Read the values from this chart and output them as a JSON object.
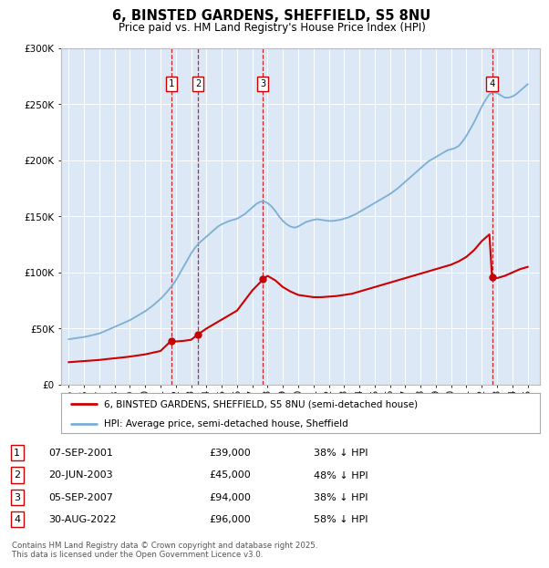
{
  "title": "6, BINSTED GARDENS, SHEFFIELD, S5 8NU",
  "subtitle": "Price paid vs. HM Land Registry's House Price Index (HPI)",
  "footer": "Contains HM Land Registry data © Crown copyright and database right 2025.\nThis data is licensed under the Open Government Licence v3.0.",
  "legend_line1": "6, BINSTED GARDENS, SHEFFIELD, S5 8NU (semi-detached house)",
  "legend_line2": "HPI: Average price, semi-detached house, Sheffield",
  "transactions": [
    {
      "num": 1,
      "date": "07-SEP-2001",
      "price": 39000,
      "pct": "38% ↓ HPI",
      "year": 2001.69
    },
    {
      "num": 2,
      "date": "20-JUN-2003",
      "price": 45000,
      "pct": "48% ↓ HPI",
      "year": 2003.47
    },
    {
      "num": 3,
      "date": "05-SEP-2007",
      "price": 94000,
      "pct": "38% ↓ HPI",
      "year": 2007.69
    },
    {
      "num": 4,
      "date": "30-AUG-2022",
      "price": 96000,
      "pct": "58% ↓ HPI",
      "year": 2022.67
    }
  ],
  "hpi_color": "#7bafd4",
  "price_color": "#cc0000",
  "vline_color": "#cc0000",
  "plot_bg": "#dce8f5",
  "ylim": [
    0,
    300000
  ],
  "yticks": [
    0,
    50000,
    100000,
    150000,
    200000,
    250000,
    300000
  ],
  "xlim_start": 1994.5,
  "xlim_end": 2025.8,
  "hpi_data": [
    [
      1995.0,
      40500
    ],
    [
      1995.25,
      41000
    ],
    [
      1995.5,
      41500
    ],
    [
      1995.75,
      42000
    ],
    [
      1996.0,
      42500
    ],
    [
      1996.25,
      43200
    ],
    [
      1996.5,
      44000
    ],
    [
      1996.75,
      44800
    ],
    [
      1997.0,
      45700
    ],
    [
      1997.25,
      47000
    ],
    [
      1997.5,
      48500
    ],
    [
      1997.75,
      50000
    ],
    [
      1998.0,
      51500
    ],
    [
      1998.25,
      53000
    ],
    [
      1998.5,
      54500
    ],
    [
      1998.75,
      56000
    ],
    [
      1999.0,
      57500
    ],
    [
      1999.25,
      59500
    ],
    [
      1999.5,
      61500
    ],
    [
      1999.75,
      63500
    ],
    [
      2000.0,
      65500
    ],
    [
      2000.25,
      68000
    ],
    [
      2000.5,
      70500
    ],
    [
      2000.75,
      73500
    ],
    [
      2001.0,
      76500
    ],
    [
      2001.25,
      80000
    ],
    [
      2001.5,
      84000
    ],
    [
      2001.75,
      88000
    ],
    [
      2002.0,
      93000
    ],
    [
      2002.25,
      99000
    ],
    [
      2002.5,
      105000
    ],
    [
      2002.75,
      111000
    ],
    [
      2003.0,
      117000
    ],
    [
      2003.25,
      122000
    ],
    [
      2003.5,
      126000
    ],
    [
      2003.75,
      129000
    ],
    [
      2004.0,
      132000
    ],
    [
      2004.25,
      135000
    ],
    [
      2004.5,
      138000
    ],
    [
      2004.75,
      141000
    ],
    [
      2005.0,
      143000
    ],
    [
      2005.25,
      144500
    ],
    [
      2005.5,
      146000
    ],
    [
      2005.75,
      147000
    ],
    [
      2006.0,
      148000
    ],
    [
      2006.25,
      150000
    ],
    [
      2006.5,
      152000
    ],
    [
      2006.75,
      155000
    ],
    [
      2007.0,
      158000
    ],
    [
      2007.25,
      161000
    ],
    [
      2007.5,
      163000
    ],
    [
      2007.75,
      163500
    ],
    [
      2008.0,
      162000
    ],
    [
      2008.25,
      159000
    ],
    [
      2008.5,
      155000
    ],
    [
      2008.75,
      150000
    ],
    [
      2009.0,
      146000
    ],
    [
      2009.25,
      143000
    ],
    [
      2009.5,
      141000
    ],
    [
      2009.75,
      140000
    ],
    [
      2010.0,
      141000
    ],
    [
      2010.25,
      143000
    ],
    [
      2010.5,
      145000
    ],
    [
      2010.75,
      146000
    ],
    [
      2011.0,
      147000
    ],
    [
      2011.25,
      147500
    ],
    [
      2011.5,
      147000
    ],
    [
      2011.75,
      146500
    ],
    [
      2012.0,
      146000
    ],
    [
      2012.25,
      146000
    ],
    [
      2012.5,
      146500
    ],
    [
      2012.75,
      147000
    ],
    [
      2013.0,
      148000
    ],
    [
      2013.25,
      149000
    ],
    [
      2013.5,
      150500
    ],
    [
      2013.75,
      152000
    ],
    [
      2014.0,
      154000
    ],
    [
      2014.25,
      156000
    ],
    [
      2014.5,
      158000
    ],
    [
      2014.75,
      160000
    ],
    [
      2015.0,
      162000
    ],
    [
      2015.25,
      164000
    ],
    [
      2015.5,
      166000
    ],
    [
      2015.75,
      168000
    ],
    [
      2016.0,
      170000
    ],
    [
      2016.25,
      172500
    ],
    [
      2016.5,
      175000
    ],
    [
      2016.75,
      178000
    ],
    [
      2017.0,
      181000
    ],
    [
      2017.25,
      184000
    ],
    [
      2017.5,
      187000
    ],
    [
      2017.75,
      190000
    ],
    [
      2018.0,
      193000
    ],
    [
      2018.25,
      196000
    ],
    [
      2018.5,
      199000
    ],
    [
      2018.75,
      201000
    ],
    [
      2019.0,
      203000
    ],
    [
      2019.25,
      205000
    ],
    [
      2019.5,
      207000
    ],
    [
      2019.75,
      209000
    ],
    [
      2020.0,
      210000
    ],
    [
      2020.25,
      211000
    ],
    [
      2020.5,
      213000
    ],
    [
      2020.75,
      217000
    ],
    [
      2021.0,
      222000
    ],
    [
      2021.25,
      228000
    ],
    [
      2021.5,
      234000
    ],
    [
      2021.75,
      241000
    ],
    [
      2022.0,
      248000
    ],
    [
      2022.25,
      254000
    ],
    [
      2022.5,
      259000
    ],
    [
      2022.75,
      261000
    ],
    [
      2023.0,
      260000
    ],
    [
      2023.25,
      258000
    ],
    [
      2023.5,
      256000
    ],
    [
      2023.75,
      256000
    ],
    [
      2024.0,
      257000
    ],
    [
      2024.25,
      259000
    ],
    [
      2024.5,
      262000
    ],
    [
      2024.75,
      265000
    ],
    [
      2025.0,
      268000
    ]
  ],
  "price_data": [
    [
      1995.0,
      20000
    ],
    [
      1995.5,
      20500
    ],
    [
      1996.0,
      21000
    ],
    [
      1996.5,
      21500
    ],
    [
      1997.0,
      22000
    ],
    [
      1997.5,
      22800
    ],
    [
      1998.0,
      23500
    ],
    [
      1998.5,
      24200
    ],
    [
      1999.0,
      25000
    ],
    [
      1999.5,
      26000
    ],
    [
      2000.0,
      27000
    ],
    [
      2000.5,
      28500
    ],
    [
      2001.0,
      30000
    ],
    [
      2001.69,
      39000
    ],
    [
      2002.0,
      38500
    ],
    [
      2002.5,
      39000
    ],
    [
      2003.0,
      40000
    ],
    [
      2003.47,
      45000
    ],
    [
      2004.0,
      50000
    ],
    [
      2004.5,
      54000
    ],
    [
      2005.0,
      58000
    ],
    [
      2005.5,
      62000
    ],
    [
      2006.0,
      66000
    ],
    [
      2006.5,
      75000
    ],
    [
      2007.0,
      84000
    ],
    [
      2007.5,
      91000
    ],
    [
      2007.69,
      94000
    ],
    [
      2008.0,
      97000
    ],
    [
      2008.5,
      93000
    ],
    [
      2009.0,
      87000
    ],
    [
      2009.5,
      83000
    ],
    [
      2010.0,
      80000
    ],
    [
      2010.5,
      79000
    ],
    [
      2011.0,
      78000
    ],
    [
      2011.5,
      78000
    ],
    [
      2012.0,
      78500
    ],
    [
      2012.5,
      79000
    ],
    [
      2013.0,
      80000
    ],
    [
      2013.5,
      81000
    ],
    [
      2014.0,
      83000
    ],
    [
      2014.5,
      85000
    ],
    [
      2015.0,
      87000
    ],
    [
      2015.5,
      89000
    ],
    [
      2016.0,
      91000
    ],
    [
      2016.5,
      93000
    ],
    [
      2017.0,
      95000
    ],
    [
      2017.5,
      97000
    ],
    [
      2018.0,
      99000
    ],
    [
      2018.5,
      101000
    ],
    [
      2019.0,
      103000
    ],
    [
      2019.5,
      105000
    ],
    [
      2020.0,
      107000
    ],
    [
      2020.5,
      110000
    ],
    [
      2021.0,
      114000
    ],
    [
      2021.5,
      120000
    ],
    [
      2022.0,
      128000
    ],
    [
      2022.5,
      134000
    ],
    [
      2022.67,
      96000
    ],
    [
      2023.0,
      95000
    ],
    [
      2023.5,
      97000
    ],
    [
      2024.0,
      100000
    ],
    [
      2024.5,
      103000
    ],
    [
      2025.0,
      105000
    ]
  ]
}
